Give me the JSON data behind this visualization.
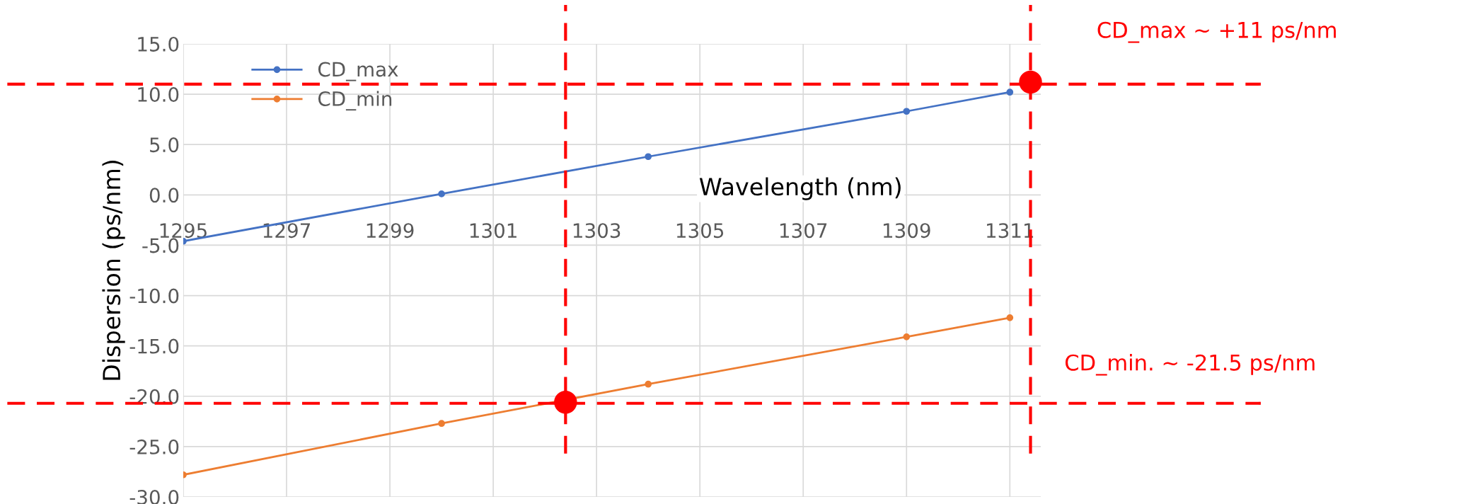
{
  "chart_data": {
    "type": "line",
    "xlabel": "Wavelength (nm)",
    "ylabel": "Dispersion (ps/nm)",
    "xlim": [
      1295,
      1311.6
    ],
    "xticks": [
      1295,
      1297,
      1299,
      1301,
      1303,
      1305,
      1307,
      1309,
      1311
    ],
    "ylim": [
      -30,
      15
    ],
    "yticks": [
      {
        "value": -30,
        "label": "-30.0"
      },
      {
        "value": -25,
        "label": "-25.0"
      },
      {
        "value": -20,
        "label": "-20.0"
      },
      {
        "value": -15,
        "label": "-15.0"
      },
      {
        "value": -10,
        "label": "-10.0"
      },
      {
        "value": -5,
        "label": "-5.0"
      },
      {
        "value": 0,
        "label": "0.0"
      },
      {
        "value": 5,
        "label": "5.0"
      },
      {
        "value": 10,
        "label": "10.0"
      },
      {
        "value": 15,
        "label": "15.0"
      }
    ],
    "grid": true,
    "legend": "top left",
    "marker": "circle",
    "series": [
      {
        "name": "CD_max",
        "color": "#4472c4",
        "x": [
          1295,
          1300,
          1304,
          1309,
          1311
        ],
        "values": [
          -4.6,
          0.1,
          3.8,
          8.3,
          10.2
        ]
      },
      {
        "name": "CD_min",
        "color": "#ed7d31",
        "x": [
          1295,
          1300,
          1304,
          1309,
          1311
        ],
        "values": [
          -27.8,
          -22.7,
          -18.8,
          -14.1,
          -12.2
        ]
      },
      {
        "type": "scatter",
        "color": "#ff0000",
        "x": [
          1311.4,
          1302.4
        ],
        "values": [
          11.2,
          -20.6
        ]
      }
    ],
    "ref_lines": [
      {
        "axis": "y",
        "value": 11,
        "color": "#ff0000",
        "line_style": "dashed"
      },
      {
        "axis": "y",
        "value": -20.7,
        "color": "#ff0000",
        "line_style": "dashed"
      },
      {
        "axis": "x",
        "value": 1302.4,
        "color": "#ff0000",
        "line_style": "dashed"
      },
      {
        "axis": "x",
        "value": 1311.4,
        "color": "#ff0000",
        "line_style": "dashed"
      }
    ],
    "annotations": [
      "CD_max ~ +11 ps/nm",
      "CD_min. ~ -21.5 ps/nm"
    ]
  }
}
